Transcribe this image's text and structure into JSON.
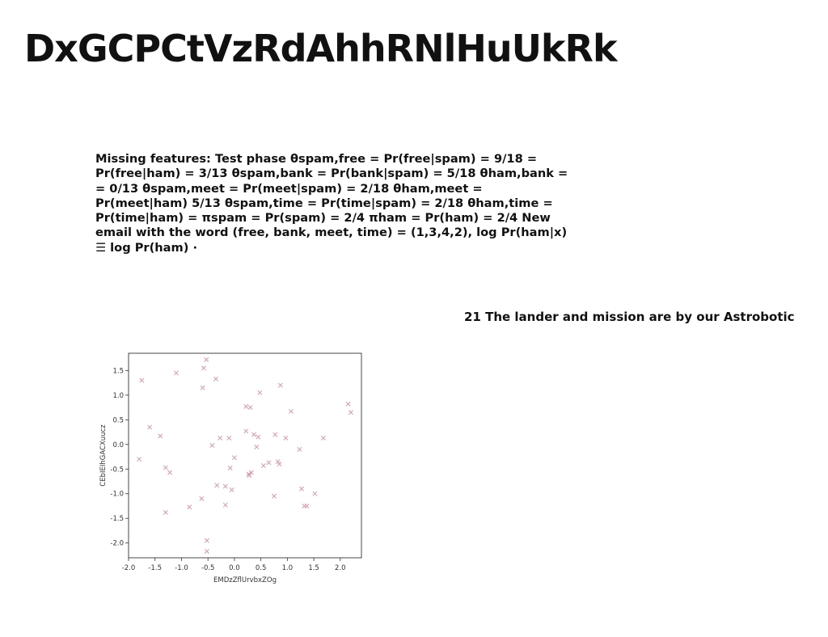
{
  "page": {
    "title": "DxGCPCtVzRdAhhRNlHuUkRk",
    "paragraph": "Missing features: Test phase θspam,free = Pr(free|spam) = 9/18 = Pr(free|ham) = 3/13 θspam,bank = Pr(bank|spam) = 5/18 θham,bank = = 0/13 θspam,meet = Pr(meet|spam) = 2/18 θham,meet = Pr(meet|ham) 5/13 θspam,time = Pr(time|spam) = 2/18 θham,time = Pr(time|ham) = πspam = Pr(spam) = 2/4 πham = Pr(ham) = 2/4 New email with the word (free, bank, meet, time) = (1,3,4,2), log Pr(ham|x) ☰ log Pr(ham) ·",
    "caption": "21 The lander and mission are by our Astrobotic"
  },
  "chart_data": {
    "type": "scatter",
    "title": "",
    "xlabel": "EMDzZflUrvbxZOg",
    "ylabel": "CEbIEIhGACXuucz",
    "xlim": [
      -2.0,
      2.4
    ],
    "ylim": [
      -2.3,
      1.85
    ],
    "xticks": [
      "-2.0",
      "-1.5",
      "-1.0",
      "-0.5",
      "0.0",
      "0.5",
      "1.0",
      "1.5",
      "2.0"
    ],
    "yticks": [
      "1.5",
      "1.0",
      "0.5",
      "0.0",
      "-0.5",
      "-1.0",
      "-1.5",
      "-2.0"
    ],
    "marker": "x",
    "marker_color": "#d4a3aa",
    "grid": false,
    "points": [
      [
        -1.8,
        -0.3
      ],
      [
        -1.75,
        1.3
      ],
      [
        -1.6,
        0.35
      ],
      [
        -1.4,
        0.17
      ],
      [
        -1.3,
        -0.47
      ],
      [
        -1.3,
        -1.38
      ],
      [
        -1.22,
        -0.57
      ],
      [
        -1.1,
        1.45
      ],
      [
        -0.85,
        -1.27
      ],
      [
        -0.62,
        -1.1
      ],
      [
        -0.6,
        1.15
      ],
      [
        -0.58,
        1.55
      ],
      [
        -0.53,
        1.72
      ],
      [
        -0.52,
        -1.95
      ],
      [
        -0.52,
        -2.17
      ],
      [
        -0.42,
        -0.02
      ],
      [
        -0.35,
        1.33
      ],
      [
        -0.33,
        -0.83
      ],
      [
        -0.27,
        0.13
      ],
      [
        -0.17,
        -0.85
      ],
      [
        -0.17,
        -1.23
      ],
      [
        -0.1,
        0.13
      ],
      [
        -0.08,
        -0.48
      ],
      [
        -0.05,
        -0.92
      ],
      [
        0.0,
        -0.27
      ],
      [
        0.22,
        0.27
      ],
      [
        0.22,
        0.77
      ],
      [
        0.27,
        -0.6
      ],
      [
        0.28,
        -0.63
      ],
      [
        0.3,
        0.75
      ],
      [
        0.32,
        -0.57
      ],
      [
        0.37,
        0.2
      ],
      [
        0.42,
        -0.05
      ],
      [
        0.45,
        0.15
      ],
      [
        0.48,
        1.05
      ],
      [
        0.55,
        -0.43
      ],
      [
        0.65,
        -0.37
      ],
      [
        0.75,
        -1.05
      ],
      [
        0.77,
        0.2
      ],
      [
        0.82,
        -0.35
      ],
      [
        0.85,
        -0.4
      ],
      [
        0.87,
        1.2
      ],
      [
        0.97,
        0.13
      ],
      [
        1.07,
        0.67
      ],
      [
        1.23,
        -0.1
      ],
      [
        1.27,
        -0.9
      ],
      [
        1.32,
        -1.25
      ],
      [
        1.37,
        -1.25
      ],
      [
        1.52,
        -1.0
      ],
      [
        1.68,
        0.13
      ],
      [
        2.15,
        0.82
      ],
      [
        2.2,
        0.65
      ]
    ]
  }
}
